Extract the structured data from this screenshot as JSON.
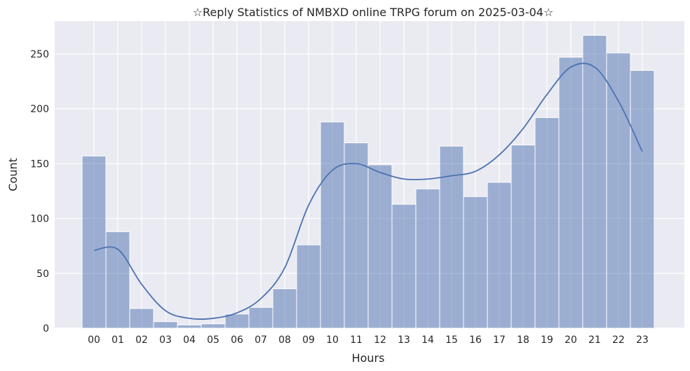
{
  "chart_data": {
    "type": "bar",
    "title": "☆Reply Statistics of NMBXD online TRPG forum on 2025-03-04☆",
    "xlabel": "Hours",
    "ylabel": "Count",
    "categories": [
      "00",
      "01",
      "02",
      "03",
      "04",
      "05",
      "06",
      "07",
      "08",
      "09",
      "10",
      "11",
      "12",
      "13",
      "14",
      "15",
      "16",
      "17",
      "18",
      "19",
      "20",
      "21",
      "22",
      "23"
    ],
    "values": [
      157,
      88,
      18,
      6,
      3,
      4,
      13,
      19,
      36,
      76,
      188,
      169,
      149,
      113,
      127,
      166,
      120,
      133,
      167,
      192,
      247,
      267,
      251,
      235
    ],
    "kde": [
      71,
      72,
      40,
      16,
      9,
      9,
      14,
      27,
      55,
      112,
      144,
      150,
      142,
      136,
      136,
      139,
      143,
      158,
      182,
      213,
      238,
      238,
      207,
      161
    ],
    "ylim": [
      0,
      280
    ],
    "yticks": [
      0,
      50,
      100,
      150,
      200,
      250
    ],
    "grid": true,
    "bar_color": "#4c72b0",
    "line_color": "#4c72b0",
    "background_color": "#eaeaf2"
  }
}
